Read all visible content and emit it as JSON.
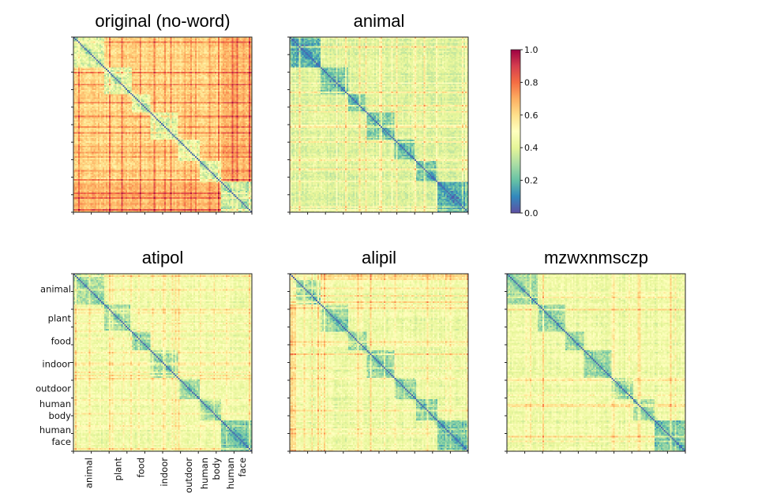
{
  "chart_data": [
    {
      "type": "heatmap",
      "title": "original (no-word)",
      "regime": "original",
      "seed": 11,
      "category_labels": [],
      "category_bounds": [
        0,
        20,
        38,
        50,
        68,
        82,
        96,
        116
      ]
    },
    {
      "type": "heatmap",
      "title": "animal",
      "regime": "animal",
      "seed": 23,
      "category_labels": [],
      "category_bounds": [
        0,
        20,
        38,
        50,
        68,
        82,
        96,
        116
      ]
    },
    {
      "type": "heatmap",
      "title": "atipol",
      "regime": "pseudo",
      "seed": 37,
      "category_labels": [
        {
          "id": "animal",
          "lines": [
            "animal"
          ]
        },
        {
          "id": "plant",
          "lines": [
            "plant"
          ]
        },
        {
          "id": "food",
          "lines": [
            "food"
          ]
        },
        {
          "id": "indoor",
          "lines": [
            "indoor"
          ]
        },
        {
          "id": "outdoor",
          "lines": [
            "outdoor"
          ]
        },
        {
          "id": "human-body",
          "lines": [
            "human",
            "body"
          ]
        },
        {
          "id": "human-face",
          "lines": [
            "human",
            "face"
          ]
        }
      ],
      "category_bounds": [
        0,
        20,
        38,
        50,
        68,
        82,
        96,
        116
      ]
    },
    {
      "type": "heatmap",
      "title": "alipil",
      "regime": "pseudo",
      "seed": 53,
      "category_labels": [],
      "category_bounds": [
        0,
        20,
        38,
        50,
        68,
        82,
        96,
        116
      ]
    },
    {
      "type": "heatmap",
      "title": "mzwxnmsczp",
      "regime": "pseudo",
      "seed": 71,
      "category_labels": [],
      "category_bounds": [
        0,
        20,
        38,
        50,
        68,
        82,
        96,
        116
      ]
    }
  ],
  "colorbar": {
    "range": [
      0.0,
      1.0
    ],
    "ticks": [
      "0.0",
      "0.2",
      "0.4",
      "0.6",
      "0.8",
      "1.0"
    ],
    "colormap": [
      "#5e4fa2",
      "#3288bd",
      "#66c2a5",
      "#abdda4",
      "#e6f598",
      "#ffffbf",
      "#fee08b",
      "#fdae61",
      "#f46d43",
      "#d53e4f",
      "#9e0142"
    ]
  }
}
